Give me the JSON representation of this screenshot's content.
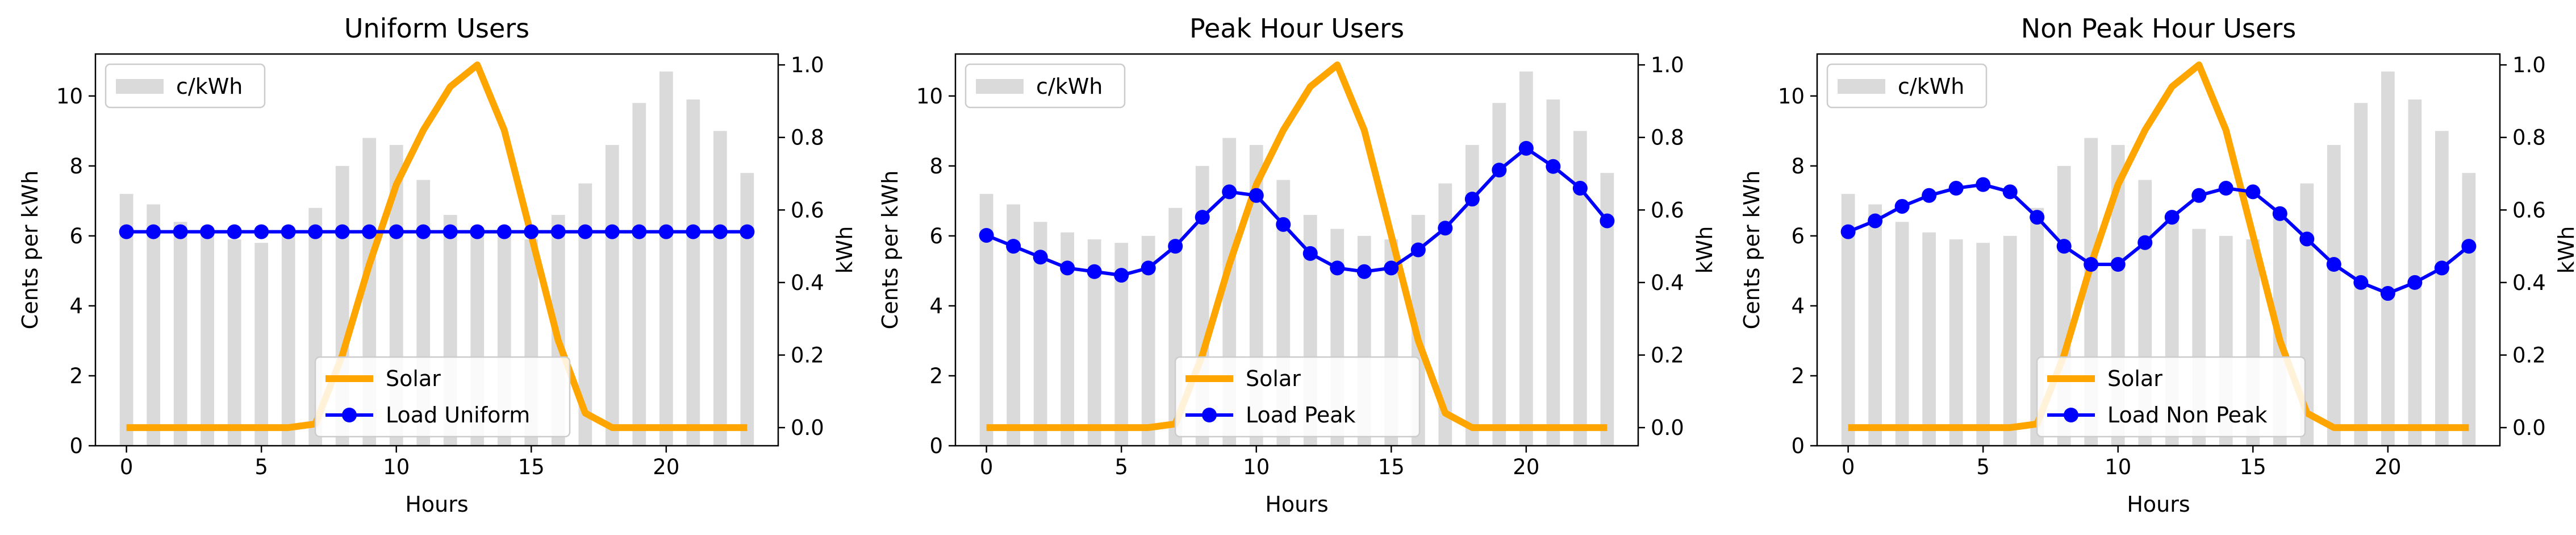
{
  "colors": {
    "bars": "#dadada",
    "solar": "#ffa500",
    "load": "#0000ff",
    "axes": "#000000",
    "legend_border": "#cccccc"
  },
  "chart_data": [
    {
      "type": "bar",
      "title": "Uniform Users",
      "xlabel": "Hours",
      "ylabel": "Cents per kWh",
      "y2label": "kWh",
      "xticks": [
        0,
        5,
        10,
        15,
        20
      ],
      "yticks": [
        0,
        2,
        4,
        6,
        8,
        10
      ],
      "y2ticks": [
        0.0,
        0.2,
        0.4,
        0.6,
        0.8,
        1.0
      ],
      "xlim": [
        -1.15,
        24.15
      ],
      "ylim": [
        0,
        11.2
      ],
      "y2lim": [
        -0.05,
        1.03
      ],
      "hours": [
        0,
        1,
        2,
        3,
        4,
        5,
        6,
        7,
        8,
        9,
        10,
        11,
        12,
        13,
        14,
        15,
        16,
        17,
        18,
        19,
        20,
        21,
        22,
        23
      ],
      "price": {
        "name": "c/kWh",
        "values": [
          7.2,
          6.9,
          6.4,
          6.1,
          5.9,
          5.8,
          6.0,
          6.8,
          8.0,
          8.8,
          8.6,
          7.6,
          6.6,
          6.2,
          6.0,
          5.9,
          6.6,
          7.5,
          8.6,
          9.8,
          10.7,
          9.9,
          9.0,
          7.8
        ]
      },
      "solar": {
        "name": "Solar",
        "values": [
          0,
          0,
          0,
          0,
          0,
          0,
          0,
          0.01,
          0.2,
          0.45,
          0.67,
          0.82,
          0.94,
          1.0,
          0.82,
          0.53,
          0.24,
          0.04,
          0,
          0,
          0,
          0,
          0,
          0
        ]
      },
      "load": {
        "name": "Load Uniform",
        "values": [
          0.54,
          0.54,
          0.54,
          0.54,
          0.54,
          0.54,
          0.54,
          0.54,
          0.54,
          0.54,
          0.54,
          0.54,
          0.54,
          0.54,
          0.54,
          0.54,
          0.54,
          0.54,
          0.54,
          0.54,
          0.54,
          0.54,
          0.54,
          0.54
        ]
      },
      "legend_upper": "top-left",
      "legend_lower": "bottom-center"
    },
    {
      "type": "bar",
      "title": "Peak Hour Users",
      "xlabel": "Hours",
      "ylabel": "Cents per kWh",
      "y2label": "kWh",
      "xticks": [
        0,
        5,
        10,
        15,
        20
      ],
      "yticks": [
        0,
        2,
        4,
        6,
        8,
        10
      ],
      "y2ticks": [
        0.0,
        0.2,
        0.4,
        0.6,
        0.8,
        1.0
      ],
      "xlim": [
        -1.15,
        24.15
      ],
      "ylim": [
        0,
        11.2
      ],
      "y2lim": [
        -0.05,
        1.03
      ],
      "hours": [
        0,
        1,
        2,
        3,
        4,
        5,
        6,
        7,
        8,
        9,
        10,
        11,
        12,
        13,
        14,
        15,
        16,
        17,
        18,
        19,
        20,
        21,
        22,
        23
      ],
      "price": {
        "name": "c/kWh",
        "values": [
          7.2,
          6.9,
          6.4,
          6.1,
          5.9,
          5.8,
          6.0,
          6.8,
          8.0,
          8.8,
          8.6,
          7.6,
          6.6,
          6.2,
          6.0,
          5.9,
          6.6,
          7.5,
          8.6,
          9.8,
          10.7,
          9.9,
          9.0,
          7.8
        ]
      },
      "solar": {
        "name": "Solar",
        "values": [
          0,
          0,
          0,
          0,
          0,
          0,
          0,
          0.01,
          0.2,
          0.45,
          0.67,
          0.82,
          0.94,
          1.0,
          0.82,
          0.53,
          0.24,
          0.04,
          0,
          0,
          0,
          0,
          0,
          0
        ]
      },
      "load": {
        "name": "Load Peak",
        "values": [
          0.53,
          0.5,
          0.47,
          0.44,
          0.43,
          0.42,
          0.44,
          0.5,
          0.58,
          0.65,
          0.64,
          0.56,
          0.48,
          0.44,
          0.43,
          0.44,
          0.49,
          0.55,
          0.63,
          0.71,
          0.77,
          0.72,
          0.66,
          0.57
        ]
      },
      "legend_upper": "top-left",
      "legend_lower": "bottom-center"
    },
    {
      "type": "bar",
      "title": "Non Peak Hour Users",
      "xlabel": "Hours",
      "ylabel": "Cents per kWh",
      "y2label": "kWh",
      "xticks": [
        0,
        5,
        10,
        15,
        20
      ],
      "yticks": [
        0,
        2,
        4,
        6,
        8,
        10
      ],
      "y2ticks": [
        0.0,
        0.2,
        0.4,
        0.6,
        0.8,
        1.0
      ],
      "xlim": [
        -1.15,
        24.15
      ],
      "ylim": [
        0,
        11.2
      ],
      "y2lim": [
        -0.05,
        1.03
      ],
      "hours": [
        0,
        1,
        2,
        3,
        4,
        5,
        6,
        7,
        8,
        9,
        10,
        11,
        12,
        13,
        14,
        15,
        16,
        17,
        18,
        19,
        20,
        21,
        22,
        23
      ],
      "price": {
        "name": "c/kWh",
        "values": [
          7.2,
          6.9,
          6.4,
          6.1,
          5.9,
          5.8,
          6.0,
          6.8,
          8.0,
          8.8,
          8.6,
          7.6,
          6.6,
          6.2,
          6.0,
          5.9,
          6.6,
          7.5,
          8.6,
          9.8,
          10.7,
          9.9,
          9.0,
          7.8
        ]
      },
      "solar": {
        "name": "Solar",
        "values": [
          0,
          0,
          0,
          0,
          0,
          0,
          0,
          0.01,
          0.2,
          0.45,
          0.67,
          0.82,
          0.94,
          1.0,
          0.82,
          0.53,
          0.24,
          0.04,
          0,
          0,
          0,
          0,
          0,
          0
        ]
      },
      "load": {
        "name": "Load Non Peak",
        "values": [
          0.54,
          0.57,
          0.61,
          0.64,
          0.66,
          0.67,
          0.65,
          0.58,
          0.5,
          0.45,
          0.45,
          0.51,
          0.58,
          0.64,
          0.66,
          0.65,
          0.59,
          0.52,
          0.45,
          0.4,
          0.37,
          0.4,
          0.44,
          0.5
        ]
      },
      "legend_upper": "top-left",
      "legend_lower": "bottom-center"
    }
  ]
}
